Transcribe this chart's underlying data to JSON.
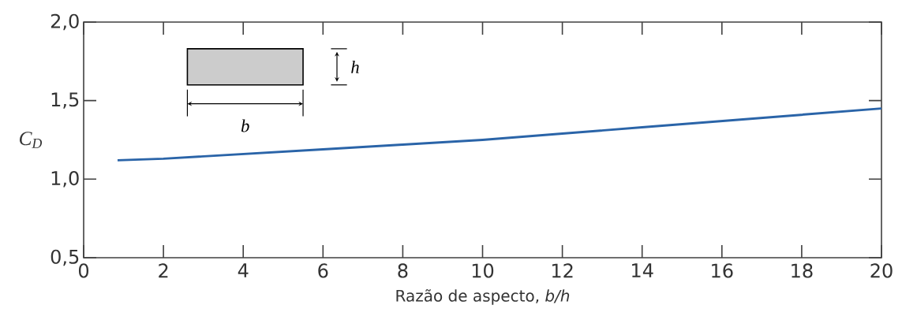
{
  "chart_data": {
    "type": "line",
    "xlabel": "Razão de aspecto, *b/h*",
    "ylabel": "C$_{D}$",
    "x": [
      0.85,
      2,
      4,
      6,
      8,
      10,
      12,
      14,
      16,
      18,
      20
    ],
    "series": [
      {
        "color": "#2a64a8",
        "values": [
          1.12,
          1.13,
          1.16,
          1.19,
          1.22,
          1.25,
          1.29,
          1.33,
          1.37,
          1.41,
          1.45
        ]
      }
    ],
    "xlim": [
      0,
      20
    ],
    "ylim": [
      0.5,
      2.0
    ],
    "xticks": [
      0,
      2,
      4,
      6,
      8,
      10,
      12,
      14,
      16,
      18,
      20
    ],
    "yticks": [
      {
        "value": 0.5,
        "label": "0,5"
      },
      {
        "value": 1.0,
        "label": "1,0"
      },
      {
        "value": 1.5,
        "label": "1,5"
      },
      {
        "value": 2.0,
        "label": "2,0"
      }
    ],
    "annotations": [
      "b",
      "h"
    ],
    "grid": false,
    "marker": "none",
    "line_style": "solid"
  }
}
